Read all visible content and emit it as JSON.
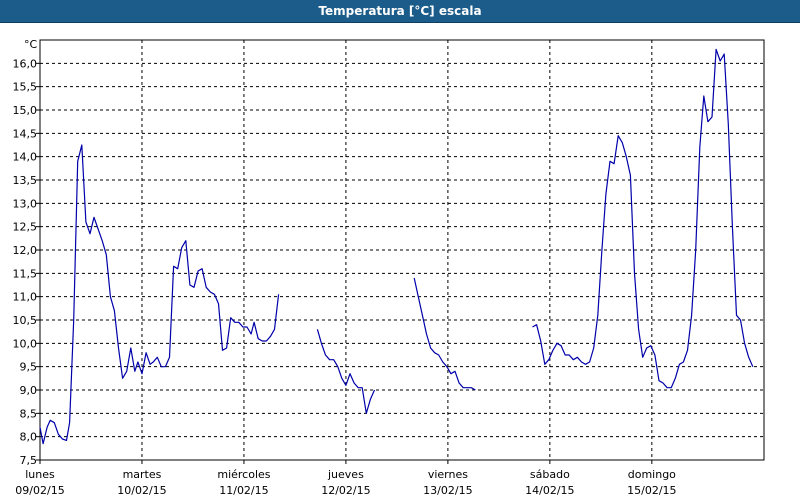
{
  "window": {
    "title": "Temperatura [°C] escala"
  },
  "chart_data": {
    "type": "line",
    "title": "Temperatura [°C] escala",
    "ylabel": "°C",
    "xlabel": "",
    "ylim": [
      7.5,
      16.5
    ],
    "xlim": [
      0,
      7.1
    ],
    "yticks": [
      7.5,
      8.0,
      8.5,
      9.0,
      9.5,
      10.0,
      10.5,
      11.0,
      11.5,
      12.0,
      12.5,
      13.0,
      13.5,
      14.0,
      14.5,
      15.0,
      15.5,
      16.0
    ],
    "ytick_labels": [
      "7,5",
      "8,0",
      "8,5",
      "9,0",
      "9,5",
      "10,0",
      "10,5",
      "11,0",
      "11,5",
      "12,0",
      "12,5",
      "13,0",
      "13,5",
      "14,0",
      "14,5",
      "15,0",
      "15,5",
      "16,0"
    ],
    "x_categories": [
      {
        "x": 0,
        "day": "lunes",
        "date": "09/02/15"
      },
      {
        "x": 1,
        "day": "martes",
        "date": "10/02/15"
      },
      {
        "x": 2,
        "day": "miércoles",
        "date": "11/02/15"
      },
      {
        "x": 3,
        "day": "jueves",
        "date": "12/02/15"
      },
      {
        "x": 4,
        "day": "viernes",
        "date": "13/02/15"
      },
      {
        "x": 5,
        "day": "sábado",
        "date": "14/02/15"
      },
      {
        "x": 6,
        "day": "domingo",
        "date": "15/02/15"
      }
    ],
    "grid": true,
    "line_color": "#0000aa",
    "series": [
      {
        "segments": [
          [
            [
              0.0,
              8.2
            ],
            [
              0.03,
              7.85
            ],
            [
              0.07,
              8.2
            ],
            [
              0.1,
              8.35
            ],
            [
              0.14,
              8.3
            ],
            [
              0.18,
              8.05
            ],
            [
              0.22,
              7.95
            ],
            [
              0.26,
              7.92
            ],
            [
              0.29,
              8.3
            ],
            [
              0.33,
              10.5
            ],
            [
              0.37,
              13.9
            ],
            [
              0.41,
              14.25
            ],
            [
              0.45,
              12.6
            ],
            [
              0.49,
              12.35
            ],
            [
              0.53,
              12.7
            ],
            [
              0.57,
              12.45
            ],
            [
              0.61,
              12.2
            ],
            [
              0.65,
              11.9
            ],
            [
              0.69,
              11.0
            ],
            [
              0.73,
              10.7
            ],
            [
              0.77,
              9.9
            ],
            [
              0.81,
              9.25
            ],
            [
              0.85,
              9.4
            ],
            [
              0.89,
              9.9
            ],
            [
              0.93,
              9.4
            ],
            [
              0.96,
              9.6
            ],
            [
              1.0,
              9.35
            ],
            [
              1.04,
              9.8
            ],
            [
              1.08,
              9.55
            ],
            [
              1.11,
              9.6
            ],
            [
              1.15,
              9.7
            ],
            [
              1.19,
              9.5
            ],
            [
              1.23,
              9.5
            ],
            [
              1.27,
              9.7
            ],
            [
              1.31,
              11.65
            ],
            [
              1.35,
              11.6
            ],
            [
              1.39,
              12.05
            ],
            [
              1.43,
              12.2
            ],
            [
              1.47,
              11.25
            ],
            [
              1.51,
              11.2
            ],
            [
              1.55,
              11.55
            ],
            [
              1.59,
              11.6
            ],
            [
              1.63,
              11.2
            ],
            [
              1.67,
              11.1
            ],
            [
              1.71,
              11.05
            ],
            [
              1.75,
              10.85
            ],
            [
              1.79,
              9.85
            ],
            [
              1.83,
              9.9
            ],
            [
              1.87,
              10.55
            ],
            [
              1.91,
              10.45
            ],
            [
              1.95,
              10.45
            ],
            [
              1.99,
              10.35
            ],
            [
              2.03,
              10.35
            ],
            [
              2.07,
              10.2
            ],
            [
              2.1,
              10.45
            ],
            [
              2.14,
              10.1
            ],
            [
              2.18,
              10.05
            ],
            [
              2.22,
              10.05
            ],
            [
              2.26,
              10.15
            ],
            [
              2.3,
              10.3
            ],
            [
              2.34,
              11.05
            ]
          ],
          [
            [
              2.72,
              10.3
            ],
            [
              2.76,
              10.0
            ],
            [
              2.8,
              9.75
            ],
            [
              2.84,
              9.65
            ],
            [
              2.88,
              9.65
            ],
            [
              2.92,
              9.5
            ],
            [
              2.96,
              9.25
            ],
            [
              3.0,
              9.1
            ],
            [
              3.04,
              9.35
            ],
            [
              3.08,
              9.15
            ],
            [
              3.12,
              9.05
            ],
            [
              3.16,
              9.05
            ],
            [
              3.2,
              8.5
            ],
            [
              3.24,
              8.8
            ],
            [
              3.28,
              9.0
            ]
          ],
          [
            [
              3.67,
              11.4
            ],
            [
              3.71,
              11.0
            ],
            [
              3.75,
              10.6
            ],
            [
              3.79,
              10.2
            ],
            [
              3.83,
              9.9
            ],
            [
              3.87,
              9.8
            ],
            [
              3.91,
              9.75
            ],
            [
              3.95,
              9.6
            ],
            [
              3.99,
              9.5
            ],
            [
              4.03,
              9.35
            ],
            [
              4.07,
              9.4
            ],
            [
              4.11,
              9.15
            ],
            [
              4.15,
              9.05
            ],
            [
              4.19,
              9.05
            ],
            [
              4.23,
              9.05
            ],
            [
              4.27,
              9.0
            ]
          ],
          [
            [
              4.83,
              10.35
            ],
            [
              4.87,
              10.4
            ],
            [
              4.91,
              10.05
            ],
            [
              4.95,
              9.55
            ],
            [
              4.99,
              9.65
            ],
            [
              5.03,
              9.85
            ],
            [
              5.07,
              10.0
            ],
            [
              5.11,
              9.95
            ],
            [
              5.15,
              9.75
            ],
            [
              5.19,
              9.75
            ],
            [
              5.23,
              9.65
            ],
            [
              5.27,
              9.7
            ],
            [
              5.31,
              9.6
            ],
            [
              5.35,
              9.55
            ],
            [
              5.39,
              9.6
            ],
            [
              5.43,
              9.9
            ],
            [
              5.47,
              10.6
            ],
            [
              5.51,
              12.0
            ],
            [
              5.55,
              13.2
            ],
            [
              5.59,
              13.9
            ],
            [
              5.63,
              13.85
            ],
            [
              5.67,
              14.45
            ],
            [
              5.71,
              14.3
            ],
            [
              5.75,
              14.0
            ],
            [
              5.79,
              13.6
            ],
            [
              5.83,
              11.5
            ],
            [
              5.87,
              10.3
            ],
            [
              5.91,
              9.7
            ],
            [
              5.95,
              9.9
            ],
            [
              5.99,
              9.95
            ],
            [
              6.03,
              9.75
            ],
            [
              6.07,
              9.2
            ],
            [
              6.11,
              9.15
            ],
            [
              6.15,
              9.05
            ],
            [
              6.19,
              9.05
            ],
            [
              6.23,
              9.25
            ],
            [
              6.27,
              9.55
            ],
            [
              6.31,
              9.6
            ],
            [
              6.35,
              9.85
            ],
            [
              6.39,
              10.6
            ],
            [
              6.43,
              12.0
            ],
            [
              6.47,
              14.2
            ],
            [
              6.51,
              15.3
            ],
            [
              6.55,
              14.75
            ],
            [
              6.59,
              14.85
            ],
            [
              6.63,
              16.3
            ],
            [
              6.67,
              16.05
            ],
            [
              6.71,
              16.2
            ],
            [
              6.75,
              14.7
            ],
            [
              6.79,
              12.5
            ],
            [
              6.83,
              10.6
            ],
            [
              6.87,
              10.5
            ],
            [
              6.91,
              10.0
            ],
            [
              6.95,
              9.7
            ],
            [
              6.99,
              9.5
            ]
          ]
        ]
      }
    ]
  }
}
